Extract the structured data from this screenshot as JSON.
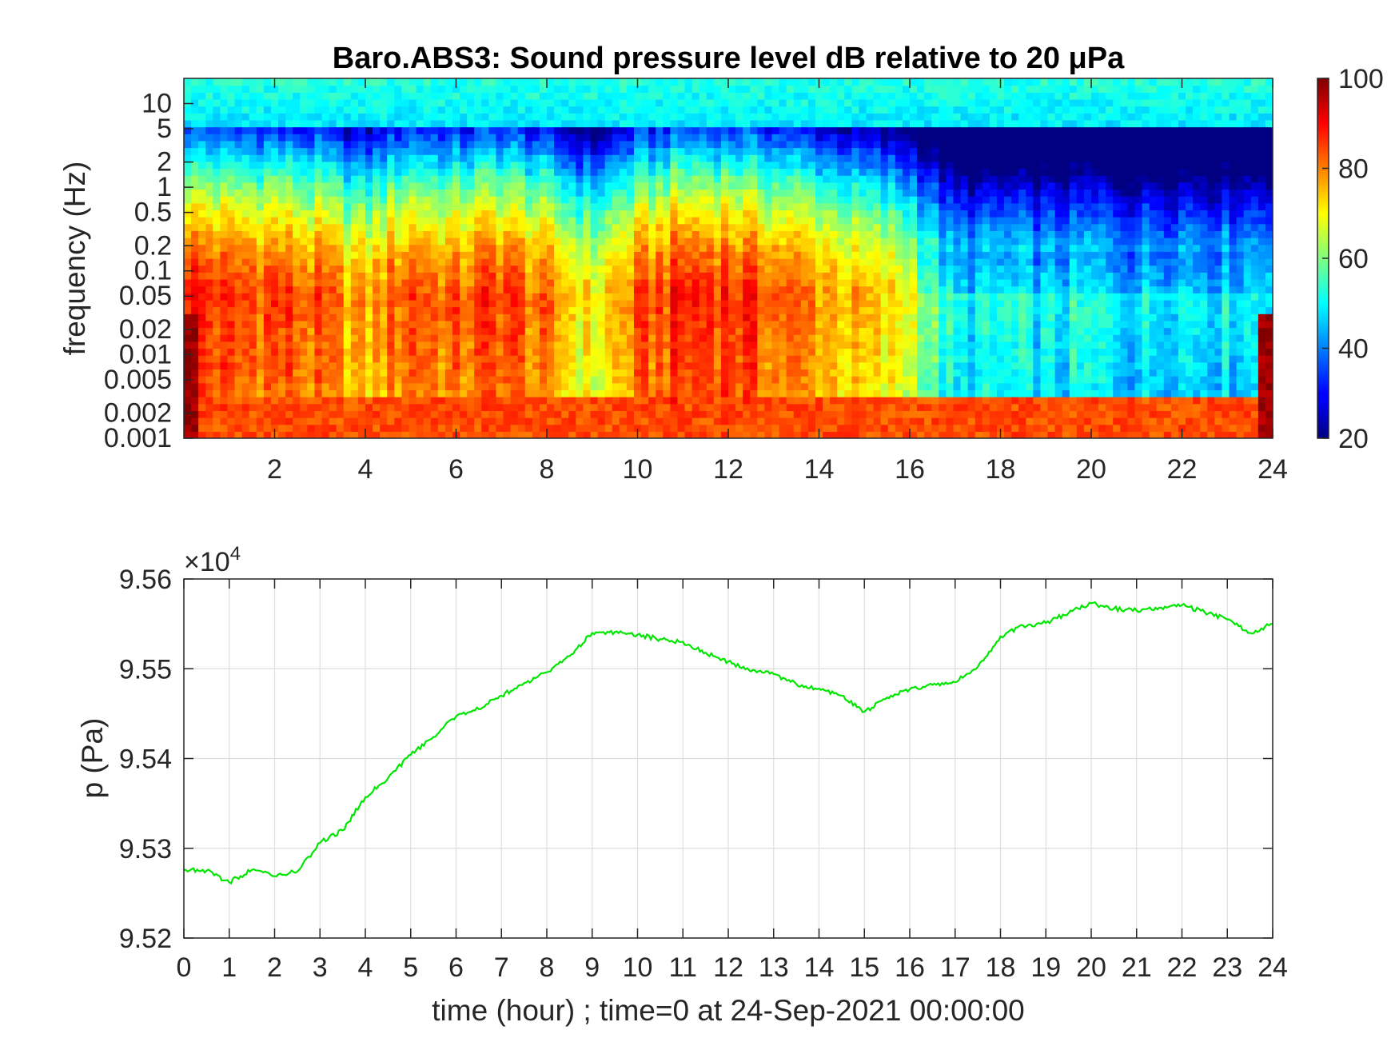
{
  "chart_data": [
    {
      "type": "heatmap",
      "title": "Baro.ABS3: Sound pressure level dB relative to 20 μPa",
      "xlabel": "",
      "ylabel": "frequency (Hz)",
      "x_ticks": [
        2,
        4,
        6,
        8,
        10,
        12,
        14,
        16,
        18,
        20,
        22,
        24
      ],
      "xlim": [
        0,
        24
      ],
      "y_ticks": [
        0.001,
        0.002,
        0.005,
        0.01,
        0.02,
        0.05,
        0.1,
        0.2,
        0.5,
        1,
        2,
        5,
        10
      ],
      "y_tick_labels": [
        "0.001",
        "0.002",
        "0.005",
        "0.01",
        "0.02",
        "0.05",
        "0.1",
        "0.2",
        "0.5",
        "1",
        "2",
        "5",
        "10"
      ],
      "ylim": [
        0.001,
        20
      ],
      "y_scale": "log",
      "colormap": "jet",
      "colorbar": {
        "ticks": [
          20,
          40,
          60,
          80,
          100
        ],
        "range": [
          20,
          100
        ]
      },
      "intensity_profile_hours": [
        0,
        1,
        2,
        3,
        4,
        5,
        6,
        7,
        8,
        9,
        10,
        11,
        12,
        13,
        14,
        15,
        16,
        17,
        18,
        19,
        20,
        21,
        22,
        23,
        24
      ],
      "intensity_profile_db_at_0_05hz": [
        90,
        85,
        86,
        82,
        76,
        86,
        82,
        87,
        80,
        70,
        82,
        88,
        88,
        84,
        80,
        74,
        70,
        50,
        52,
        50,
        52,
        49,
        52,
        50,
        52
      ]
    },
    {
      "type": "line",
      "title": "",
      "xlabel": "time (hour) ; time=0 at 24-Sep-2021 00:00:00",
      "ylabel": "p (Pa)",
      "exponent_label": "×10",
      "exponent_power": "4",
      "x_ticks": [
        0,
        1,
        2,
        3,
        4,
        5,
        6,
        7,
        8,
        9,
        10,
        11,
        12,
        13,
        14,
        15,
        16,
        17,
        18,
        19,
        20,
        21,
        22,
        23,
        24
      ],
      "y_ticks": [
        95200,
        95300,
        95400,
        95500,
        95600
      ],
      "y_tick_labels": [
        "9.52",
        "9.53",
        "9.54",
        "9.55",
        "9.56"
      ],
      "xlim": [
        0,
        24
      ],
      "ylim": [
        95200,
        95600
      ],
      "grid": true,
      "line_color": "#00e600",
      "series": [
        {
          "x": [
            0,
            0.5,
            1,
            1.5,
            2,
            2.5,
            3,
            3.5,
            4,
            4.5,
            5,
            5.5,
            6,
            6.5,
            7,
            7.5,
            8,
            8.5,
            9,
            9.5,
            10,
            10.5,
            11,
            11.5,
            12,
            12.5,
            13,
            13.5,
            14,
            14.5,
            15,
            15.5,
            16,
            16.5,
            17,
            17.5,
            18,
            18.5,
            19,
            19.5,
            20,
            20.5,
            21,
            21.5,
            22,
            22.5,
            23,
            23.5,
            24
          ],
          "y": [
            95276,
            95275,
            95262,
            95276,
            95269,
            95274,
            95306,
            95320,
            95357,
            95378,
            95404,
            95424,
            95447,
            95455,
            95470,
            95484,
            95496,
            95514,
            95540,
            95541,
            95538,
            95533,
            95530,
            95518,
            95508,
            95497,
            95494,
            95483,
            95478,
            95470,
            95452,
            95468,
            95477,
            95482,
            95485,
            95502,
            95536,
            95548,
            95551,
            95562,
            95573,
            95567,
            95565,
            95568,
            95571,
            95563,
            95555,
            95540,
            95550
          ]
        }
      ]
    }
  ]
}
